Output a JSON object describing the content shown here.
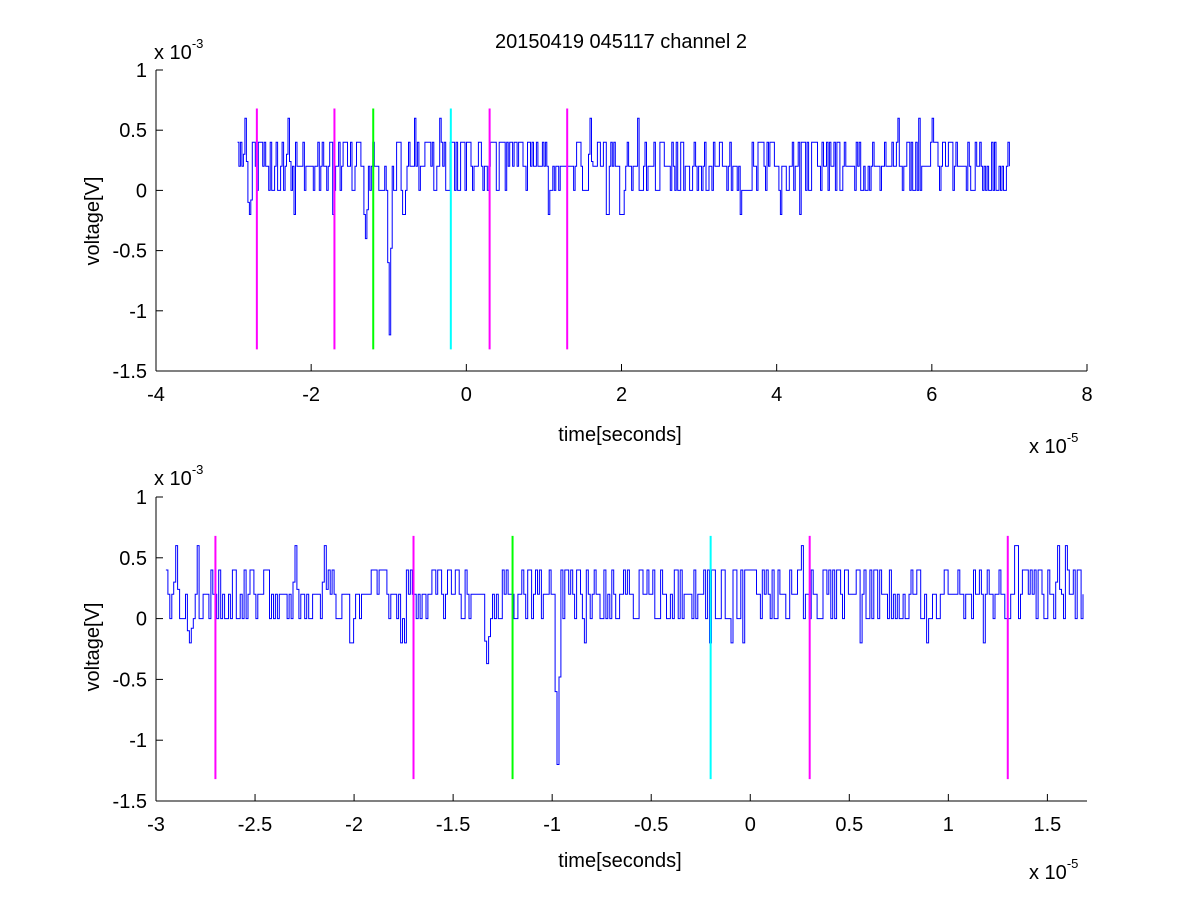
{
  "figure": {
    "title": "20150419 045117 channel 2"
  },
  "chart_data": [
    {
      "type": "line",
      "title": "20150419 045117 channel 2",
      "xlabel": "time[seconds]",
      "ylabel": "voltage[V]",
      "x_multiplier_label": "x 10",
      "x_multiplier_exp": "-5",
      "y_multiplier_label": "x 10",
      "y_multiplier_exp": "-3",
      "xlim": [
        -4,
        8
      ],
      "ylim": [
        -1.5,
        1
      ],
      "xticks": [
        -4,
        -2,
        0,
        2,
        4,
        6,
        8
      ],
      "xtick_labels": [
        "-4",
        "-2",
        "0",
        "2",
        "4",
        "6",
        "8"
      ],
      "yticks": [
        -1.5,
        -1,
        -0.5,
        0,
        0.5,
        1
      ],
      "ytick_labels": [
        "-1.5",
        "-1",
        "-0.5",
        "0",
        "0.5",
        "1"
      ],
      "grid": false,
      "signal": {
        "color": "#0000ff",
        "x_range": [
          -2.95,
          7.0
        ],
        "baseline_levels": [
          0,
          0.2,
          0.4
        ],
        "notable_dips": [
          {
            "x": -1.3,
            "y": -0.4
          },
          {
            "x": -1.0,
            "y": -1.2
          },
          {
            "x": -2.8,
            "y": -0.2
          }
        ],
        "notable_peaks": [
          {
            "x": -2.85,
            "y": 0.6
          },
          {
            "x": -2.3,
            "y": 0.6
          },
          {
            "x": 1.6,
            "y": 0.6
          }
        ]
      },
      "markers": [
        {
          "x": -2.7,
          "color": "#ff00ff"
        },
        {
          "x": -1.7,
          "color": "#ff00ff"
        },
        {
          "x": -1.2,
          "color": "#00ff00"
        },
        {
          "x": -0.2,
          "color": "#00ffff"
        },
        {
          "x": 0.3,
          "color": "#ff00ff"
        },
        {
          "x": 1.3,
          "color": "#ff00ff"
        }
      ],
      "marker_y_range": [
        -1.32,
        0.68
      ]
    },
    {
      "type": "line",
      "xlabel": "time[seconds]",
      "ylabel": "voltage[V]",
      "x_multiplier_label": "x 10",
      "x_multiplier_exp": "-5",
      "y_multiplier_label": "x 10",
      "y_multiplier_exp": "-3",
      "xlim": [
        -3.0,
        1.7
      ],
      "ylim": [
        -1.5,
        1
      ],
      "xticks": [
        -3,
        -2.5,
        -2,
        -1.5,
        -1,
        -0.5,
        0,
        0.5,
        1,
        1.5
      ],
      "xtick_labels": [
        "-3",
        "-2.5",
        "-2",
        "-1.5",
        "-1",
        "-0.5",
        "0",
        "0.5",
        "1",
        "1.5"
      ],
      "yticks": [
        -1.5,
        -1,
        -0.5,
        0,
        0.5,
        1
      ],
      "ytick_labels": [
        "-1.5",
        "-1",
        "-0.5",
        "0",
        "0.5",
        "1"
      ],
      "grid": false,
      "signal": {
        "color": "#0000ff",
        "x_range": [
          -2.95,
          1.68
        ],
        "baseline_levels": [
          0,
          0.2,
          0.4
        ],
        "notable_dips": [
          {
            "x": -2.83,
            "y": -0.2
          },
          {
            "x": -1.33,
            "y": -0.37
          },
          {
            "x": -0.98,
            "y": -1.2
          }
        ],
        "notable_peaks": [
          {
            "x": -2.9,
            "y": 0.6
          },
          {
            "x": -2.3,
            "y": 0.6
          },
          {
            "x": -2.15,
            "y": 0.6
          },
          {
            "x": 1.55,
            "y": 0.6
          }
        ]
      },
      "markers": [
        {
          "x": -2.7,
          "color": "#ff00ff"
        },
        {
          "x": -1.7,
          "color": "#ff00ff"
        },
        {
          "x": -1.2,
          "color": "#00ff00"
        },
        {
          "x": -0.2,
          "color": "#00ffff"
        },
        {
          "x": 0.3,
          "color": "#ff00ff"
        },
        {
          "x": 1.3,
          "color": "#ff00ff"
        }
      ],
      "marker_y_range": [
        -1.32,
        0.68
      ]
    }
  ]
}
